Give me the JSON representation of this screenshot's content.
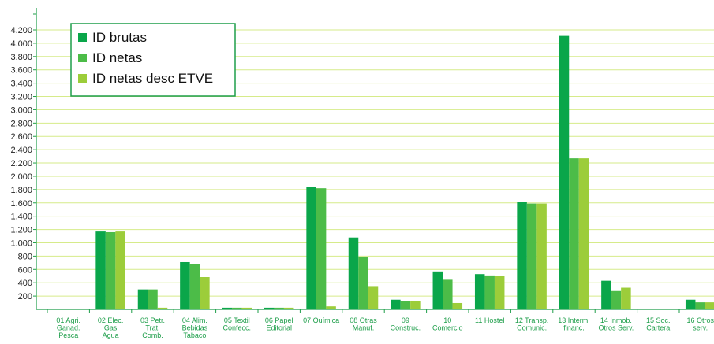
{
  "chart_data": {
    "type": "bar",
    "title": "",
    "xlabel": "",
    "ylabel": "",
    "ylim": [
      0,
      4300
    ],
    "yticks": [
      200,
      400,
      600,
      800,
      1000,
      1200,
      1400,
      1600,
      1800,
      2000,
      2200,
      2400,
      2600,
      2800,
      3000,
      3200,
      3400,
      3600,
      3800,
      4000,
      4200
    ],
    "ytick_labels": [
      "200",
      "400",
      "600",
      "800",
      "1.000",
      "1.200",
      "1.400",
      "1.600",
      "1.800",
      "2.000",
      "2.200",
      "2.400",
      "2.600",
      "2.800",
      "3.000",
      "3.200",
      "3.400",
      "3.600",
      "3.800",
      "4.000",
      "4.200"
    ],
    "grid": true,
    "legend_position": "top-left",
    "categories": [
      [
        "01 Agri.",
        "Ganad.",
        "Pesca"
      ],
      [
        "02 Elec.",
        "Gas",
        "Agua"
      ],
      [
        "03 Petr.",
        "Trat.",
        "Comb."
      ],
      [
        "04 Alim.",
        "Bebidas",
        "Tabaco"
      ],
      [
        "05 Textil",
        "Confecc."
      ],
      [
        "06 Papel",
        "Editorial"
      ],
      [
        "07 Química"
      ],
      [
        "08 Otras",
        "Manuf."
      ],
      [
        "09",
        "Construc."
      ],
      [
        "10",
        "Comercio"
      ],
      [
        "11 Hostel"
      ],
      [
        "12 Transp.",
        "Comunic."
      ],
      [
        "13 Interm.",
        "financ."
      ],
      [
        "14 Inmob.",
        "Otros Serv."
      ],
      [
        "15 Soc.",
        "Cartera"
      ],
      [
        "16 Otros",
        "serv."
      ]
    ],
    "series": [
      {
        "name": "ID brutas",
        "color": "#0aa64a",
        "values": [
          0,
          1170,
          300,
          710,
          25,
          25,
          1840,
          1080,
          145,
          570,
          530,
          1610,
          4110,
          430,
          0,
          145
        ]
      },
      {
        "name": "ID netas",
        "color": "#4cbc48",
        "values": [
          0,
          1160,
          300,
          680,
          25,
          25,
          1820,
          790,
          130,
          445,
          510,
          1590,
          2270,
          275,
          0,
          105
        ]
      },
      {
        "name": "ID netas desc ETVE",
        "color": "#9ccd3a",
        "values": [
          0,
          1170,
          25,
          485,
          25,
          25,
          45,
          350,
          130,
          95,
          500,
          1590,
          2270,
          325,
          0,
          105
        ]
      }
    ]
  },
  "colors": {
    "axis": "#1e9e4a",
    "grid": "#d6eb8a",
    "legend_border": "#1e9e4a"
  }
}
